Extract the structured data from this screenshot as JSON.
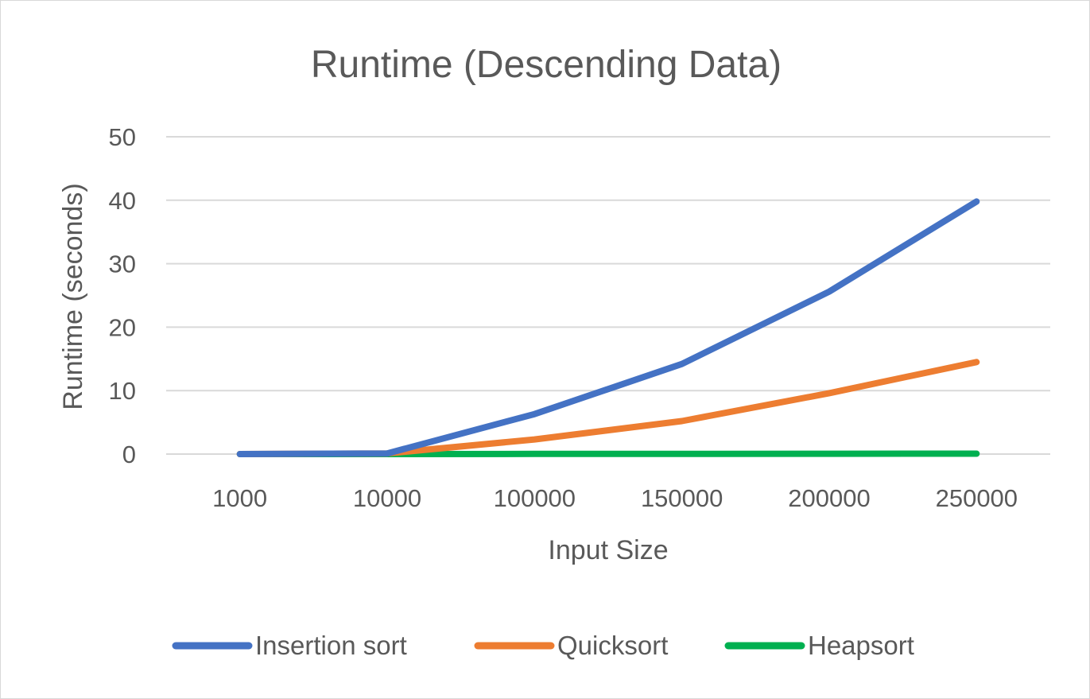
{
  "chart_data": {
    "type": "line",
    "title": "Runtime (Descending Data)",
    "xlabel": "Input Size",
    "ylabel": "Runtime (seconds)",
    "categories": [
      "1000",
      "10000",
      "100000",
      "150000",
      "200000",
      "250000"
    ],
    "ylim": [
      0,
      50
    ],
    "yticks": [
      0,
      10,
      20,
      30,
      40,
      50
    ],
    "grid": true,
    "legend_position": "bottom",
    "series": [
      {
        "name": "Insertion sort",
        "color": "#4472c4",
        "values": [
          0.0,
          0.1,
          6.3,
          14.2,
          25.6,
          39.8
        ]
      },
      {
        "name": "Quicksort",
        "color": "#ed7d31",
        "values": [
          0.0,
          0.1,
          2.3,
          5.2,
          9.6,
          14.5
        ]
      },
      {
        "name": "Heapsort",
        "color": "#00b050",
        "values": [
          0.0,
          0.0,
          0.02,
          0.03,
          0.05,
          0.06
        ]
      }
    ]
  }
}
